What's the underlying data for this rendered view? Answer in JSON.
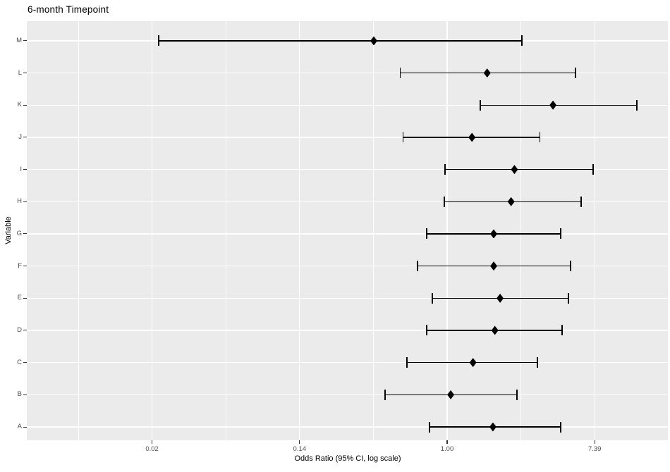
{
  "chart_data": {
    "type": "scatter",
    "subtype": "forest-plot",
    "title": "6-month Timepoint",
    "xlabel": "Odds Ratio (95% CI, log scale)",
    "ylabel": "Variable",
    "x_scale": "log",
    "xlim": [
      0.0033,
      19.5
    ],
    "grid": "on",
    "x_ticks": [
      {
        "label": "0.02",
        "value": 0.02,
        "ln": -4
      },
      {
        "label": "0.14",
        "value": 0.14,
        "ln": -2
      },
      {
        "label": "1.00",
        "value": 1.0,
        "ln": 0
      },
      {
        "label": "7.39",
        "value": 7.39,
        "ln": 2
      }
    ],
    "x_minor_ln": [
      -5,
      -3,
      -1,
      1,
      3
    ],
    "categories": [
      "A",
      "B",
      "C",
      "D",
      "E",
      "F",
      "G",
      "H",
      "I",
      "J",
      "K",
      "L",
      "M"
    ],
    "points": [
      {
        "variable": "A",
        "or": 1.86,
        "ci_low": 0.79,
        "ci_high": 4.65
      },
      {
        "variable": "B",
        "or": 1.05,
        "ci_low": 0.43,
        "ci_high": 2.57
      },
      {
        "variable": "C",
        "or": 1.42,
        "ci_low": 0.58,
        "ci_high": 3.4
      },
      {
        "variable": "D",
        "or": 1.91,
        "ci_low": 0.76,
        "ci_high": 4.76
      },
      {
        "variable": "E",
        "or": 2.05,
        "ci_low": 0.82,
        "ci_high": 5.18
      },
      {
        "variable": "F",
        "or": 1.88,
        "ci_low": 0.67,
        "ci_high": 5.32
      },
      {
        "variable": "G",
        "or": 1.88,
        "ci_low": 0.76,
        "ci_high": 4.65
      },
      {
        "variable": "H",
        "or": 2.38,
        "ci_low": 0.96,
        "ci_high": 6.16
      },
      {
        "variable": "I",
        "or": 2.49,
        "ci_low": 0.97,
        "ci_high": 7.25
      },
      {
        "variable": "J",
        "or": 1.4,
        "ci_low": 0.55,
        "ci_high": 3.52
      },
      {
        "variable": "K",
        "or": 4.2,
        "ci_low": 1.57,
        "ci_high": 13.1
      },
      {
        "variable": "L",
        "or": 1.72,
        "ci_low": 0.53,
        "ci_high": 5.7
      },
      {
        "variable": "M",
        "or": 0.37,
        "ci_low": 0.02,
        "ci_high": 2.75
      }
    ],
    "colors": {
      "background": "#FFFFFF",
      "panel_bg": "#EBEBEB",
      "grid": "#FFFFFF",
      "marker": "#000000",
      "axis_text": "#4D4D4D",
      "tick": "#333333",
      "title": "#000000"
    }
  }
}
